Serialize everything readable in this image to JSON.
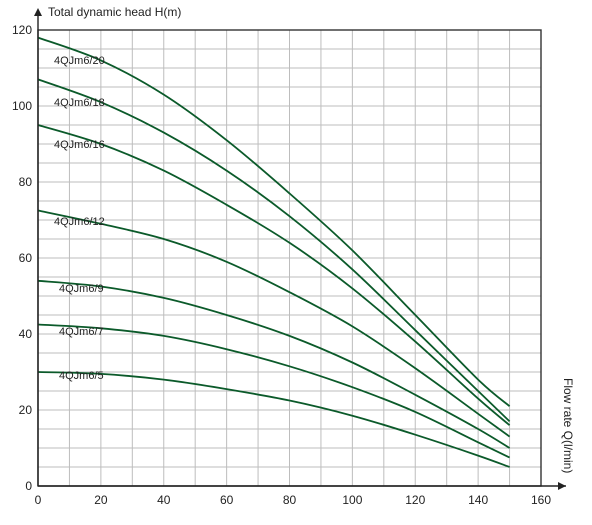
{
  "chart_data": {
    "type": "line",
    "ylabel": "Total dynamic head H(m)",
    "xlabel": "Flow rate Q(l/min)",
    "xlim": [
      0,
      160
    ],
    "ylim": [
      0,
      120
    ],
    "xticks": [
      0,
      20,
      40,
      60,
      80,
      100,
      120,
      140,
      160
    ],
    "yticks": [
      0,
      20,
      40,
      60,
      80,
      100,
      120
    ],
    "grid": true,
    "line_color": "#0b5a2a",
    "series": [
      {
        "name": "4QJm6/20",
        "x": [
          0,
          20,
          40,
          60,
          80,
          100,
          120,
          140,
          150
        ],
        "values": [
          118,
          112,
          103,
          91,
          77,
          62,
          45,
          28,
          21
        ]
      },
      {
        "name": "4QJm6/18",
        "x": [
          0,
          20,
          40,
          60,
          80,
          100,
          120,
          140,
          150
        ],
        "values": [
          107,
          101,
          93,
          83,
          71,
          57,
          41,
          25,
          17
        ]
      },
      {
        "name": "4QJm6/16",
        "x": [
          0,
          20,
          40,
          60,
          80,
          100,
          120,
          140,
          150
        ],
        "values": [
          95,
          90,
          83,
          74,
          64,
          52,
          38,
          23,
          16
        ]
      },
      {
        "name": "4QJm6/12",
        "x": [
          0,
          20,
          40,
          60,
          80,
          100,
          120,
          140,
          150
        ],
        "values": [
          72.5,
          69,
          65,
          59,
          51,
          42,
          31,
          19,
          13
        ]
      },
      {
        "name": "4QJm6/9",
        "x": [
          0,
          20,
          40,
          60,
          80,
          100,
          120,
          140,
          150
        ],
        "values": [
          54,
          52.5,
          49.5,
          45,
          39.5,
          32.5,
          24,
          15,
          10
        ]
      },
      {
        "name": "4QJm6/7",
        "x": [
          0,
          20,
          40,
          60,
          80,
          100,
          120,
          140,
          150
        ],
        "values": [
          42.5,
          41.5,
          39.5,
          36,
          31.5,
          26,
          19.5,
          11.5,
          7.5
        ]
      },
      {
        "name": "4QJm6/5",
        "x": [
          0,
          20,
          40,
          60,
          80,
          100,
          120,
          140,
          150
        ],
        "values": [
          30,
          29.5,
          28,
          25.5,
          22.5,
          18.5,
          13.5,
          8,
          5
        ]
      }
    ]
  }
}
